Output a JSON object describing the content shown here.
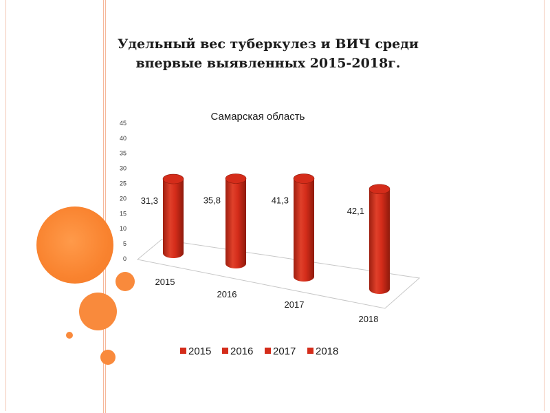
{
  "slide": {
    "title_line1": "Удельный вес туберкулез и ВИЧ среди",
    "title_line2": "впервые выявленных 2015-2018г."
  },
  "colors": {
    "bar": "#d42c1a",
    "bar_dark": "#8e1a0c",
    "bar_light": "#ee5a42",
    "accent_orange": "#f98a3c",
    "deco_line": "#f6b89a"
  },
  "chart_data": {
    "type": "bar",
    "title": "Самарская область",
    "categories": [
      "2015",
      "2016",
      "2017",
      "2018"
    ],
    "values": [
      31.3,
      35.8,
      41.3,
      42.1
    ],
    "data_labels": [
      "31,3",
      "35,8",
      "41,3",
      "42,1"
    ],
    "y_ticks": [
      "0",
      "5",
      "10",
      "15",
      "20",
      "25",
      "30",
      "35",
      "40",
      "45"
    ],
    "ylim": [
      0,
      45
    ],
    "legend": [
      "2015",
      "2016",
      "2017",
      "2018"
    ],
    "legend_position": "bottom",
    "grid": false,
    "style": "3d-cylinder"
  }
}
